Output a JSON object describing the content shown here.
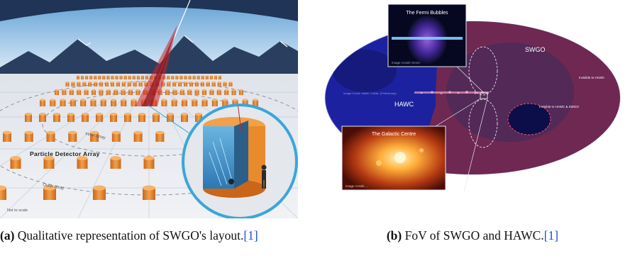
{
  "figure_a": {
    "labels": {
      "array": "Particle Detector Array",
      "inner": "Inner array",
      "outer": "Outer array",
      "scale": "Not to scale"
    },
    "caption": {
      "tag": "(a)",
      "text": " Qualitative representation of SWGO's layout.",
      "ref": "[1]"
    }
  },
  "figure_b": {
    "labels": {
      "swgo": "SWGO",
      "hawc": "HAWC",
      "invisible_hawc": "Invisible to HAWC",
      "invisible_both": "Invisible to HAWC & SWGO",
      "credit_hawc": "Image Credit: HAWC Collab. (Preliminary)",
      "fermi_title": "The Fermi Bubbles",
      "fermi_credit": "Image Credit: NASA",
      "gc_title": "The Galactic Centre",
      "gc_credit": "Image Credit: ..."
    },
    "caption": {
      "tag": "(b)",
      "text": " FoV of SWGO and HAWC.",
      "ref": "[1]"
    }
  },
  "colors": {
    "sky": "#9ec9ea",
    "mountains": "#2a3f5f",
    "ground": "#e6e9ef",
    "detector_orange": "#e98a2c",
    "sky_map_base": "#1a1f9a",
    "swgo_region": "#7a2a4f",
    "link": "#1a4fd0"
  }
}
